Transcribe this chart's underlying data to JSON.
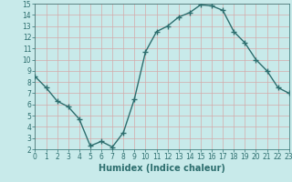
{
  "x": [
    0,
    1,
    2,
    3,
    4,
    5,
    6,
    7,
    8,
    9,
    10,
    11,
    12,
    13,
    14,
    15,
    16,
    17,
    18,
    19,
    20,
    21,
    22,
    23
  ],
  "y": [
    8.5,
    7.5,
    6.3,
    5.8,
    4.7,
    2.3,
    2.7,
    2.2,
    3.5,
    6.5,
    10.7,
    12.5,
    13.0,
    13.8,
    14.2,
    14.9,
    14.8,
    14.4,
    12.5,
    11.5,
    10.0,
    9.0,
    7.5,
    7.0
  ],
  "line_color": "#2d6e6e",
  "marker": "+",
  "marker_size": 4,
  "bg_color": "#c8eaea",
  "grid_color": "#d4aaaa",
  "xlabel": "Humidex (Indice chaleur)",
  "xlim": [
    0,
    23
  ],
  "ylim": [
    2,
    15
  ],
  "yticks": [
    2,
    3,
    4,
    5,
    6,
    7,
    8,
    9,
    10,
    11,
    12,
    13,
    14,
    15
  ],
  "xticks": [
    0,
    1,
    2,
    3,
    4,
    5,
    6,
    7,
    8,
    9,
    10,
    11,
    12,
    13,
    14,
    15,
    16,
    17,
    18,
    19,
    20,
    21,
    22,
    23
  ],
  "tick_label_size": 5.5,
  "xlabel_size": 7,
  "line_width": 1.0
}
